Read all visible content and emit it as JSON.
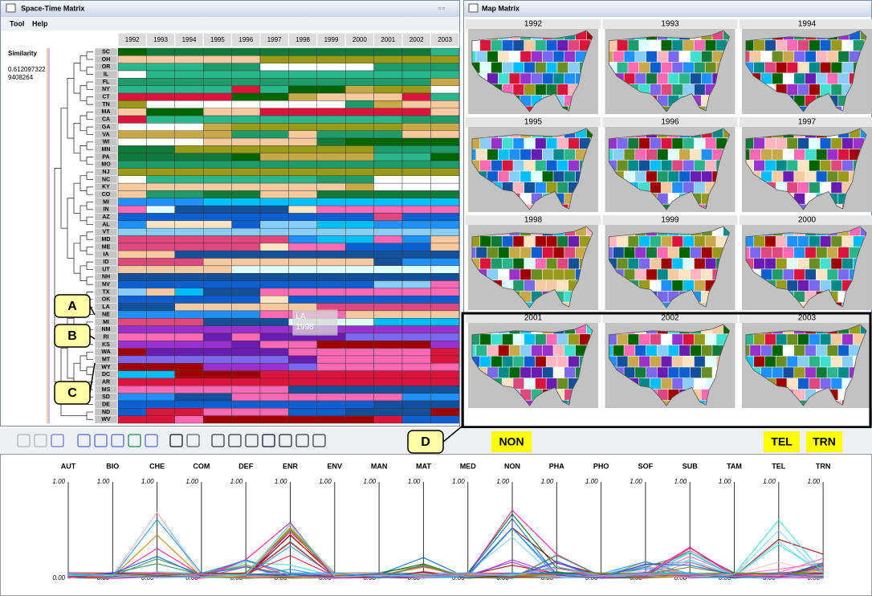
{
  "matrix_window": {
    "title": "Space-Time Matrix",
    "menu": [
      "Tool",
      "Help"
    ],
    "similarity_label": "Similarity",
    "similarity_value_lines": [
      "0.612097322",
      "9408264"
    ],
    "years": [
      1992,
      1993,
      1994,
      1995,
      1996,
      1997,
      1998,
      1999,
      2000,
      2001,
      2002,
      2003
    ],
    "states": [
      "SC",
      "OH",
      "OR",
      "IL",
      "FL",
      "NY",
      "CT",
      "TN",
      "MA",
      "CA",
      "GA",
      "VA",
      "WI",
      "MN",
      "PA",
      "MO",
      "NJ",
      "NC",
      "KY",
      "CO",
      "MI",
      "IN",
      "AZ",
      "AL",
      "VT",
      "MD",
      "ME",
      "IA",
      "ID",
      "UT",
      "NH",
      "NV",
      "TX",
      "OK",
      "LA",
      "NE",
      "MI",
      "NM",
      "RI",
      "KS",
      "WA",
      "MT",
      "WY",
      "DC",
      "AR",
      "MS",
      "SD",
      "DE",
      "ND",
      "WV"
    ],
    "tooltip": {
      "state": "LA",
      "year": 1998
    }
  },
  "map_window": {
    "title": "Map Matrix",
    "years": [
      1992,
      1993,
      1994,
      1995,
      1996,
      1997,
      1998,
      1999,
      2000,
      2001,
      2002,
      2003
    ]
  },
  "callouts": [
    "A",
    "B",
    "C",
    "D"
  ],
  "highlighted_axes": [
    "NON",
    "TEL",
    "TRN"
  ],
  "parallel_coordinates": {
    "axes": [
      "AUT",
      "BIO",
      "CHE",
      "COM",
      "DEF",
      "ENR",
      "ENV",
      "MAN",
      "MAT",
      "MED",
      "NON",
      "PHA",
      "PHO",
      "SOF",
      "SUB",
      "TAM",
      "TEL",
      "TRN"
    ],
    "axis_ticks": [
      {
        "value": 0,
        "label": "0.00"
      },
      {
        "value": 1,
        "label": "1.00"
      }
    ]
  }
}
